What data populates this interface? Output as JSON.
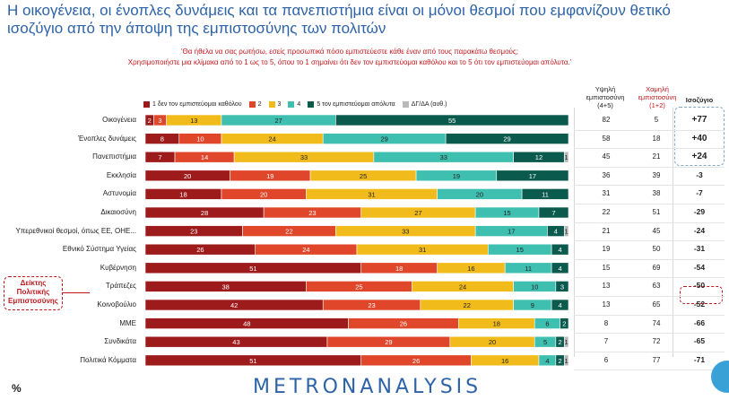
{
  "title": "Η οικογένεια, οι ένοπλες δυνάμεις και τα πανεπιστήμια είναι οι μόνοι θεσμοί που εμφανίζουν θετικό ισοζύγιο από την άποψη της εμπιστοσύνης των πολιτών",
  "question_line1": "'Θα ήθελα να σας ρωτήσω, εσείς προσωπικά πόσο εμπιστεύεστε κάθε έναν από τους παρακάτω θεσμούς;",
  "question_line2": "Χρησιμοποιήστε μια κλίμακα από το 1 ως το 5, όπου το 1 σημαίνει ότι δεν τον εμπιστεύομαι καθόλου και το 5 ότι τον εμπιστεύομαι απόλυτα.'",
  "columns": {
    "high": "Υψηλή εμπιστοσύνη (4+5)",
    "low": "Χαμηλή εμπιστοσύνη (1+2)",
    "balance": "Ισοζύγιο"
  },
  "index_label": "Δείκτης Πολιτικής Εμπιστοσύνης",
  "footer_percent": "%",
  "logo": {
    "part1": "METRON",
    "part2": "ANALYSIS"
  },
  "chart_data": {
    "type": "bar",
    "orientation": "horizontal-stacked",
    "legend": [
      {
        "name": "1 δεν τον εμπιστεύομαι καθόλου",
        "color": "#9e1b1b"
      },
      {
        "name": "2",
        "color": "#e0462a"
      },
      {
        "name": "3",
        "color": "#f2bb1c"
      },
      {
        "name": "4",
        "color": "#3ebfb0"
      },
      {
        "name": "5 τον εμπιστεύομαι απόλυτα",
        "color": "#0a5a4e"
      },
      {
        "name": "ΔΓ/ΔΑ (αυθ.)",
        "color": "#b9b9b9"
      }
    ],
    "categories": [
      "Οικογένεια",
      "Ένοπλες δυνάμεις",
      "Πανεπιστήμια",
      "Εκκλησία",
      "Αστυνομία",
      "Δικαιοσύνη",
      "Υπερεθνικοί θεσμοί, όπως ΕΕ, ΟΗΕ...",
      "Εθνικό Σύστημα Υγείας",
      "Κυβέρνηση",
      "Τράπεζες",
      "Κοινοβούλιο",
      "ΜΜΕ",
      "Συνδικάτα",
      "Πολιτικά Κόμματα"
    ],
    "series": [
      {
        "name": "1 δεν τον εμπιστεύομαι καθόλου",
        "values": [
          2,
          8,
          7,
          20,
          18,
          28,
          23,
          26,
          51,
          38,
          42,
          48,
          43,
          51
        ]
      },
      {
        "name": "2",
        "values": [
          3,
          10,
          14,
          19,
          20,
          23,
          22,
          24,
          18,
          25,
          23,
          26,
          29,
          26
        ]
      },
      {
        "name": "3",
        "values": [
          13,
          24,
          33,
          25,
          31,
          27,
          33,
          31,
          16,
          24,
          22,
          18,
          20,
          16
        ]
      },
      {
        "name": "4",
        "values": [
          27,
          29,
          33,
          19,
          20,
          15,
          17,
          15,
          11,
          10,
          9,
          6,
          5,
          4
        ]
      },
      {
        "name": "5 τον εμπιστεύομαι απόλυτα",
        "values": [
          55,
          29,
          12,
          17,
          11,
          7,
          4,
          4,
          4,
          3,
          4,
          2,
          2,
          2
        ]
      },
      {
        "name": "ΔΓ/ΔΑ (αυθ.)",
        "values": [
          0,
          0,
          1,
          0,
          0,
          0,
          1,
          0,
          0,
          0,
          0,
          0,
          1,
          1
        ]
      }
    ],
    "high_trust": [
      82,
      58,
      45,
      36,
      31,
      22,
      21,
      19,
      15,
      13,
      13,
      8,
      7,
      6
    ],
    "low_trust": [
      5,
      18,
      21,
      39,
      38,
      51,
      45,
      50,
      69,
      63,
      65,
      74,
      72,
      77
    ],
    "balance": [
      "+77",
      "+40",
      "+24",
      "-3",
      "-7",
      "-29",
      "-24",
      "-31",
      "-54",
      "-50",
      "-52",
      "-66",
      "-65",
      "-71"
    ],
    "xlim": [
      0,
      100
    ]
  }
}
